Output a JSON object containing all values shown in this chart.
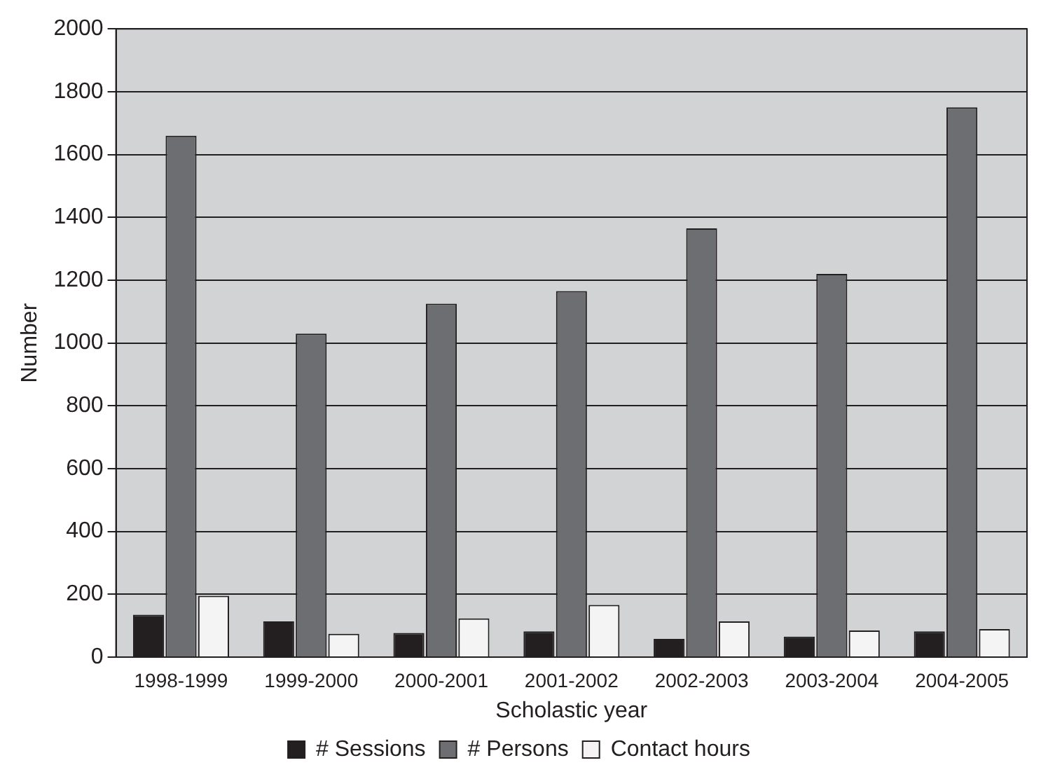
{
  "chart_data": {
    "type": "bar",
    "xlabel": "Scholastic year",
    "ylabel": "Number",
    "categories": [
      "1998-1999",
      "1999-2000",
      "2000-2001",
      "2001-2002",
      "2002-2003",
      "2003-2004",
      "2004-2005"
    ],
    "series": [
      {
        "name": "# Sessions",
        "color": "#231f20",
        "values": [
          135,
          114,
          77,
          82,
          58,
          65,
          82
        ]
      },
      {
        "name": "# Persons",
        "color": "#6d6e71",
        "values": [
          1660,
          1030,
          1125,
          1165,
          1365,
          1220,
          1750
        ]
      },
      {
        "name": "Contact hours",
        "color": "#f4f4f4",
        "values": [
          195,
          74,
          123,
          166,
          114,
          85,
          89
        ]
      }
    ],
    "ylim": [
      0,
      2000
    ],
    "yticks": [
      0,
      200,
      400,
      600,
      800,
      1000,
      1200,
      1400,
      1600,
      1800,
      2000
    ],
    "grid": "y",
    "legend": "bottom"
  }
}
